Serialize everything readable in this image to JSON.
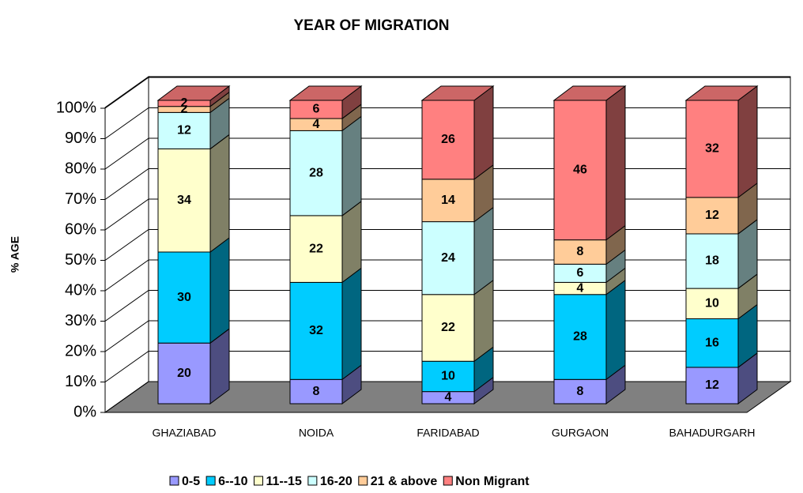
{
  "chart_data": {
    "type": "bar3d_stacked",
    "title": "YEAR OF MIGRATION",
    "y_label": "% AGE",
    "categories": [
      "GHAZIABAD",
      "NOIDA",
      "FARIDABAD",
      "GURGAON",
      "BAHADURGARH"
    ],
    "series": [
      {
        "name": "0-5",
        "color": "#9999ff",
        "values": [
          20,
          8,
          4,
          8,
          12
        ]
      },
      {
        "name": "6--10",
        "color": "#00ccff",
        "values": [
          30,
          32,
          10,
          28,
          16
        ]
      },
      {
        "name": "11--15",
        "color": "#ffffcc",
        "values": [
          34,
          22,
          22,
          4,
          10
        ]
      },
      {
        "name": "16-20",
        "color": "#ccffff",
        "values": [
          12,
          28,
          24,
          6,
          18
        ]
      },
      {
        "name": "21 & above",
        "color": "#ffcc99",
        "values": [
          2,
          4,
          14,
          8,
          12
        ]
      },
      {
        "name": "Non Migrant",
        "color": "#ff8080",
        "values": [
          2,
          6,
          26,
          46,
          32
        ]
      }
    ],
    "ylim": [
      0,
      100
    ],
    "yticks": [
      {
        "value": 0,
        "label": "0%"
      },
      {
        "value": 10,
        "label": "10%"
      },
      {
        "value": 20,
        "label": "20%"
      },
      {
        "value": 30,
        "label": "30%"
      },
      {
        "value": 40,
        "label": "40%"
      },
      {
        "value": 50,
        "label": "50%"
      },
      {
        "value": 60,
        "label": "60%"
      },
      {
        "value": 70,
        "label": "70%"
      },
      {
        "value": 80,
        "label": "80%"
      },
      {
        "value": 90,
        "label": "90%"
      },
      {
        "value": 100,
        "label": "100%"
      }
    ],
    "grid": true,
    "legend": "bottom"
  }
}
